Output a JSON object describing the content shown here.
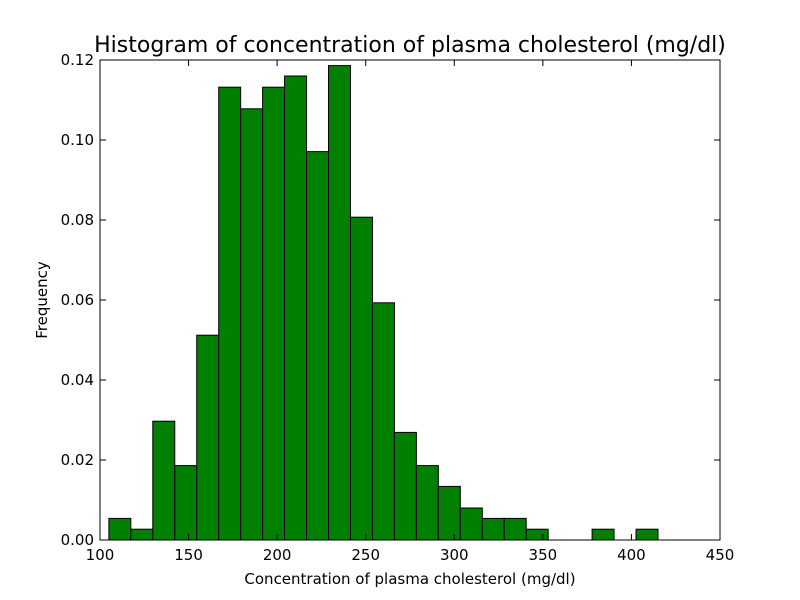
{
  "chart_data": {
    "type": "bar",
    "title": "Histogram of concentration of plasma cholesterol (mg/dl)",
    "xlabel": "Concentration of plasma cholesterol (mg/dl)",
    "ylabel": "Frequency",
    "xlim": [
      100,
      450
    ],
    "ylim": [
      0,
      0.12
    ],
    "xticks": [
      100,
      150,
      200,
      250,
      300,
      350,
      400,
      450
    ],
    "yticks": [
      0.0,
      0.02,
      0.04,
      0.06,
      0.08,
      0.1,
      0.12
    ],
    "ytick_labels": [
      "0.00",
      "0.02",
      "0.04",
      "0.06",
      "0.08",
      "0.10",
      "0.12"
    ],
    "xtick_labels": [
      "100",
      "150",
      "200",
      "250",
      "300",
      "350",
      "400",
      "450"
    ],
    "bin_width": 12.4,
    "bin_starts": [
      105.0,
      117.4,
      129.8,
      142.2,
      154.6,
      167.0,
      179.4,
      191.8,
      204.2,
      216.6,
      229.0,
      241.4,
      253.8,
      266.2,
      278.6,
      291.0,
      303.4,
      315.8,
      328.2,
      340.6,
      353.0,
      365.4,
      377.8,
      390.2,
      402.6
    ],
    "values": [
      0.0054,
      0.0027,
      0.0297,
      0.0186,
      0.0512,
      0.1132,
      0.1078,
      0.1132,
      0.116,
      0.0971,
      0.1186,
      0.0807,
      0.0593,
      0.0269,
      0.0186,
      0.0134,
      0.008,
      0.0054,
      0.0054,
      0.0027,
      0.0,
      0.0,
      0.0027,
      0.0,
      0.0027
    ],
    "grid": false,
    "bar_color": "#008000",
    "edge_color": "#000000"
  }
}
